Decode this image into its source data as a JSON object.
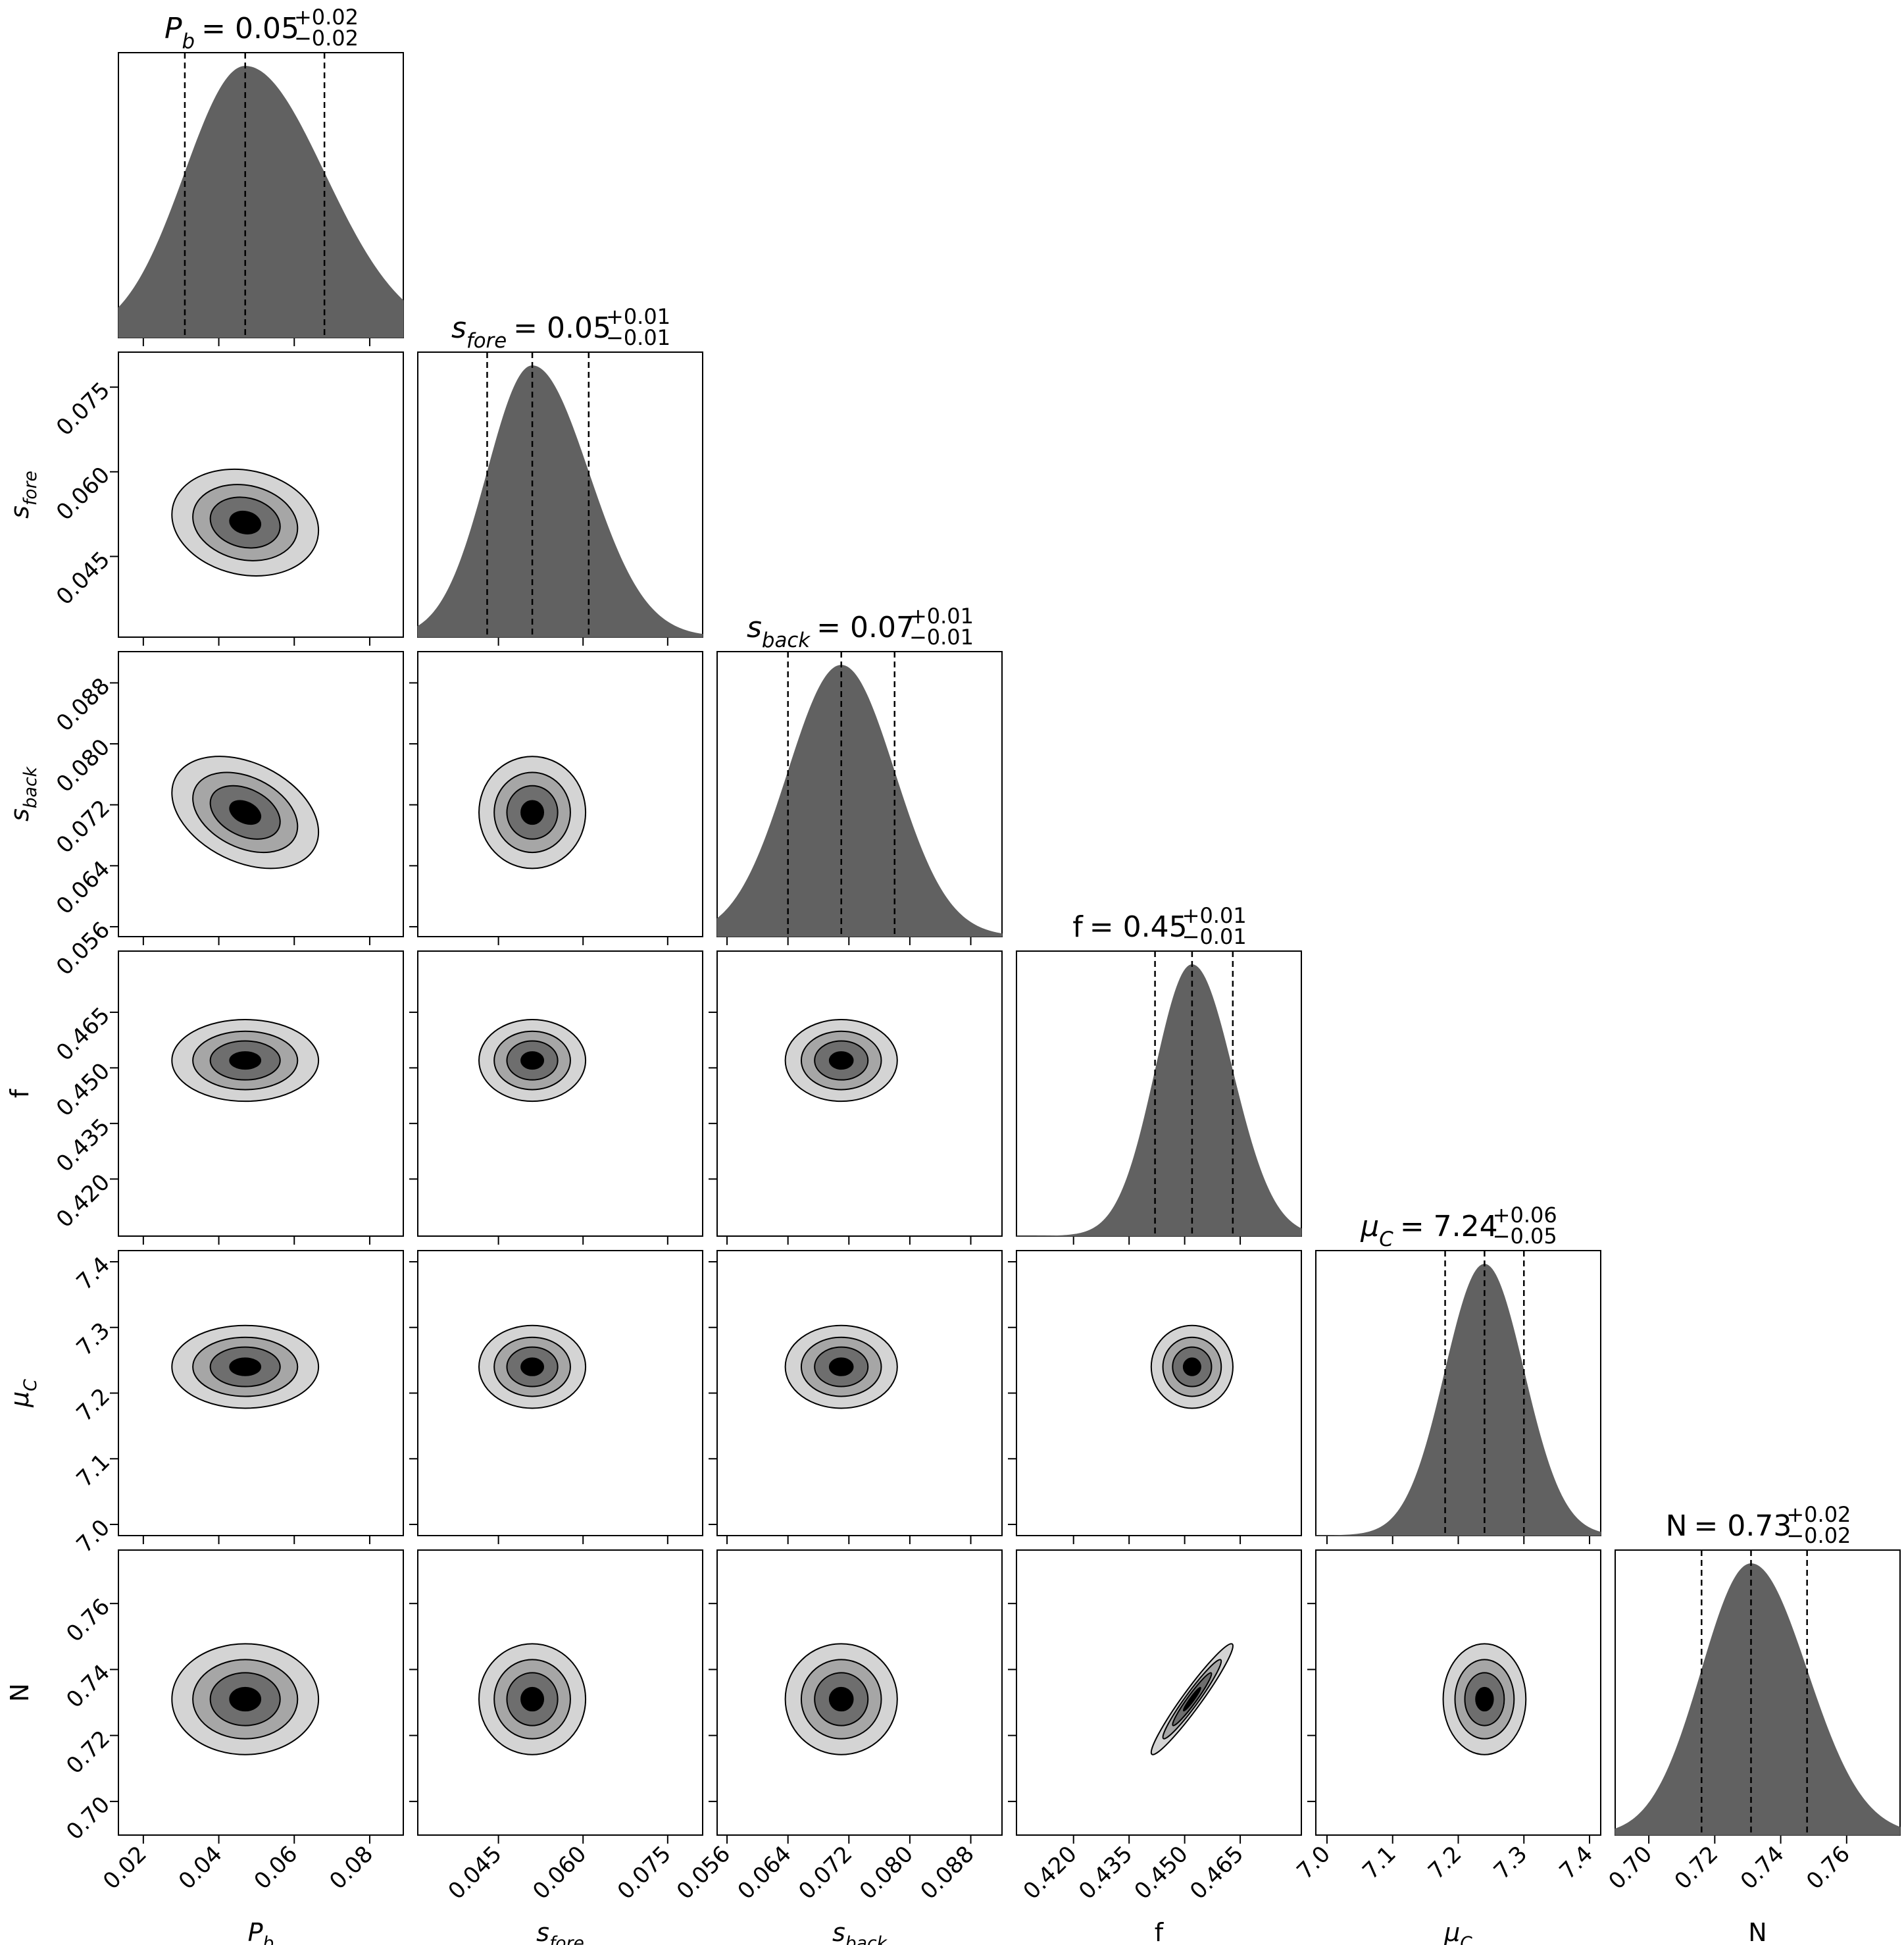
{
  "chart_data": {
    "type": "corner",
    "params": [
      {
        "symbol": "P",
        "sub": "b",
        "italic": true,
        "lim": [
          0.0134,
          0.0889
        ],
        "ticks": [
          0.02,
          0.04,
          0.06,
          0.08
        ],
        "quantiles": [
          0.031,
          0.047,
          0.068
        ],
        "title": {
          "value": "= 0.05",
          "plus": "+0.02",
          "minus": "−0.02"
        }
      },
      {
        "symbol": "s",
        "sub": "fore",
        "italic": true,
        "lim": [
          0.0307,
          0.0812
        ],
        "ticks": [
          0.045,
          {
            "value": 0.06,
            "label": "0.060"
          },
          0.075
        ],
        "quantiles": [
          0.043,
          0.051,
          0.061
        ],
        "title": {
          "value": "= 0.05",
          "plus": "+0.01",
          "minus": "−0.01"
        }
      },
      {
        "symbol": "s",
        "sub": "back",
        "italic": true,
        "lim": [
          0.0547,
          0.0921
        ],
        "ticks": [
          0.056,
          0.064,
          0.072,
          {
            "value": 0.08,
            "label": "0.080"
          },
          0.088
        ],
        "quantiles": [
          0.064,
          0.071,
          0.078
        ],
        "title": {
          "value": "= 0.07",
          "plus": "+0.01",
          "minus": "−0.01"
        }
      },
      {
        "symbol": "f",
        "italic": false,
        "lim": [
          0.4046,
          0.4815
        ],
        "ticks": [
          {
            "value": 0.42,
            "label": "0.420"
          },
          0.435,
          {
            "value": 0.45,
            "label": "0.450"
          },
          0.465
        ],
        "quantiles": [
          0.442,
          0.452,
          0.463
        ],
        "title": {
          "value": "= 0.45",
          "plus": "+0.01",
          "minus": "−0.01"
        }
      },
      {
        "symbol": "μ",
        "sub": "C",
        "italic": true,
        "lim": [
          6.983,
          7.417
        ],
        "ticks": [
          {
            "value": 7,
            "label": "7.0"
          },
          7.1,
          7.2,
          7.3,
          7.4
        ],
        "quantiles": [
          7.18,
          7.24,
          7.3
        ],
        "title": {
          "value": "= 7.24",
          "plus": "+0.06",
          "minus": "−0.05"
        }
      },
      {
        "symbol": "N",
        "italic": false,
        "lim": [
          0.6898,
          0.7762
        ],
        "ticks": [
          {
            "value": 0.7,
            "label": "0.70"
          },
          0.72,
          0.74,
          0.76
        ],
        "quantiles": [
          0.716,
          0.731,
          0.748
        ],
        "title": {
          "value": "= 0.73",
          "plus": "+0.02",
          "minus": "−0.02"
        }
      }
    ],
    "correlation": [
      [
        1,
        -0.15,
        -0.35,
        0,
        0,
        0
      ],
      [
        -0.15,
        1,
        0,
        0,
        0,
        0
      ],
      [
        -0.35,
        0,
        1,
        0,
        0,
        0
      ],
      [
        0,
        0,
        0,
        1,
        0,
        0.96
      ],
      [
        0,
        0,
        0,
        0,
        1,
        0
      ],
      [
        0,
        0,
        0,
        0.96,
        0,
        1
      ]
    ],
    "contour_levels": [
      1.05,
      0.75,
      0.5,
      0.22
    ],
    "contour_fills": [
      "#d4d4d4",
      "#a6a6a6",
      "#6e6e6e",
      "#000000"
    ],
    "hist_color": "#616161"
  }
}
